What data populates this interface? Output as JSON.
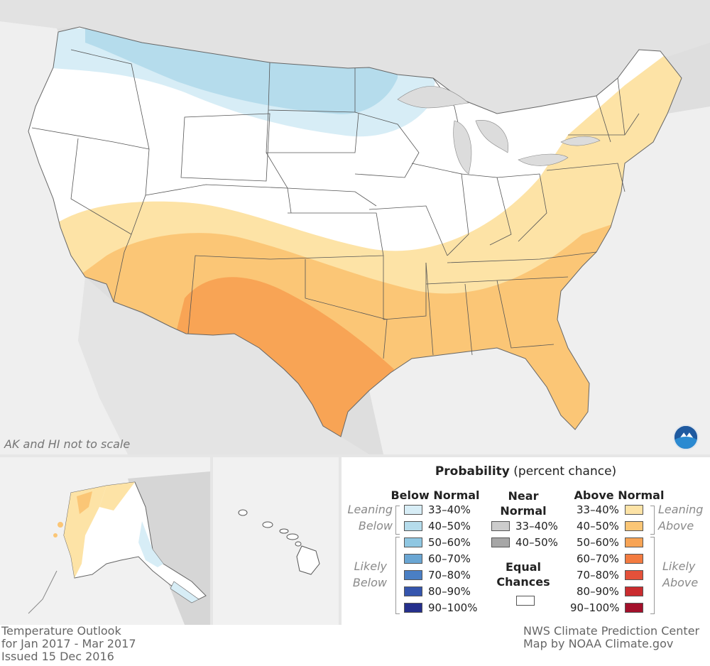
{
  "map": {
    "scale_note": "AK and HI not to scale",
    "logo_text": "NOAA"
  },
  "legend": {
    "title_bold": "Probability",
    "title_rest": "(percent chance)",
    "below_normal": {
      "header": "Below Normal",
      "leaning_label": [
        "Leaning",
        "Below"
      ],
      "likely_label": [
        "Likely",
        "Below"
      ],
      "ranges": [
        "33–40%",
        "40–50%",
        "50–60%",
        "60–70%",
        "70–80%",
        "80–90%",
        "90–100%"
      ],
      "colors": [
        "#d7edf6",
        "#b5dcec",
        "#8fc7e2",
        "#6aa6d3",
        "#4a7fc4",
        "#3555ad",
        "#252f8c"
      ]
    },
    "near_normal": {
      "header": [
        "Near",
        "Normal"
      ],
      "ranges": [
        "33–40%",
        "40–50%"
      ],
      "colors": [
        "#cccccc",
        "#a6a6a6"
      ]
    },
    "equal_chances": {
      "header": [
        "Equal",
        "Chances"
      ],
      "color": "#ffffff"
    },
    "above_normal": {
      "header": "Above Normal",
      "leaning_label": [
        "Leaning",
        "Above"
      ],
      "likely_label": [
        "Likely",
        "Above"
      ],
      "ranges": [
        "33–40%",
        "40–50%",
        "50–60%",
        "60–70%",
        "70–80%",
        "80–90%",
        "90–100%"
      ],
      "colors": [
        "#fde3a6",
        "#fbc676",
        "#f8a455",
        "#f37b40",
        "#e4513a",
        "#ca2c2f",
        "#a3102b"
      ]
    }
  },
  "footer": {
    "left": [
      "Temperature Outlook",
      "for Jan 2017 - Mar 2017",
      "Issued 15 Dec 2016"
    ],
    "right": [
      "NWS Climate Prediction Center",
      "Map by NOAA Climate.gov"
    ]
  }
}
